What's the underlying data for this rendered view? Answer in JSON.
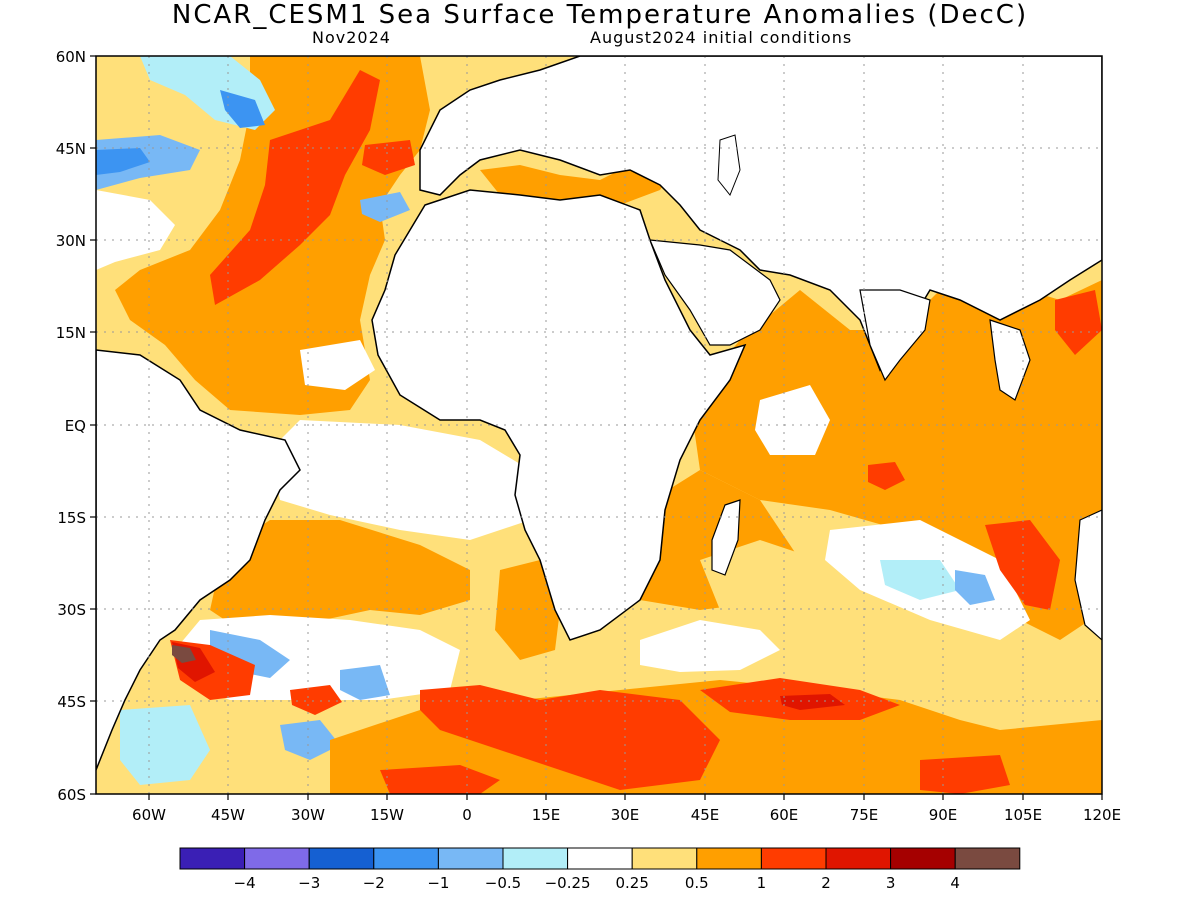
{
  "header": {
    "title": "NCAR_CESM1 Sea Surface Temperature Anomalies (DecC)",
    "forecast_month": "Nov2024",
    "initial_conditions": "August2024 initial conditions"
  },
  "map": {
    "lon_range": [
      -70,
      120
    ],
    "lat_range": [
      -60,
      60
    ],
    "lat_ticks": [
      "60N",
      "45N",
      "30N",
      "15N",
      "EQ",
      "15S",
      "30S",
      "45S",
      "60S"
    ],
    "lon_ticks": [
      "60W",
      "45W",
      "30W",
      "15W",
      "0",
      "15E",
      "30E",
      "45E",
      "60E",
      "75E",
      "90E",
      "105E",
      "120E"
    ],
    "grid": true
  },
  "colorbar": {
    "colors": [
      "#3a1fb5",
      "#7f6ae8",
      "#1560d2",
      "#3c94f2",
      "#78b8f5",
      "#b2eef8",
      "#ffffff",
      "#ffe07a",
      "#ff9f00",
      "#ff3c00",
      "#e01500",
      "#a50000",
      "#7a4a40"
    ],
    "labels": [
      "-4",
      "-3",
      "-2",
      "-1",
      "-0.5",
      "-0.25",
      "0.25",
      "0.5",
      "1",
      "2",
      "3",
      "4"
    ]
  },
  "colors": {
    "warm_light": "#ffe07a",
    "warm": "#ff9f00",
    "warm_strong": "#ff3c00",
    "cool_light": "#b2eef8",
    "cool": "#78b8f5"
  }
}
